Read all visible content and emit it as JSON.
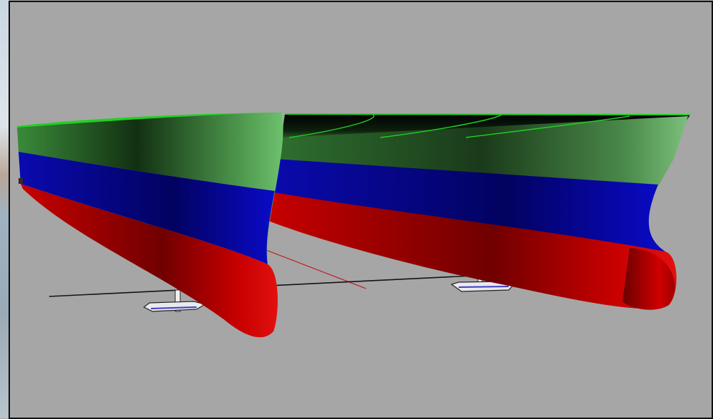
{
  "window": {
    "title": ""
  },
  "viewport": {
    "label": "",
    "background_color": "#a6a6a6",
    "border_color": "#101010"
  },
  "scene": {
    "object": "catamaran-hull-model",
    "hull_count": 2,
    "band_colors": {
      "deck_top": "#22d022",
      "upper_band": "#2e6b2e",
      "middle_band": "#0a0aa8",
      "lower_band": "#c00000"
    },
    "foil_color": "#6060d0",
    "waterline_color": "#111111",
    "axis_color": "#c02020"
  }
}
